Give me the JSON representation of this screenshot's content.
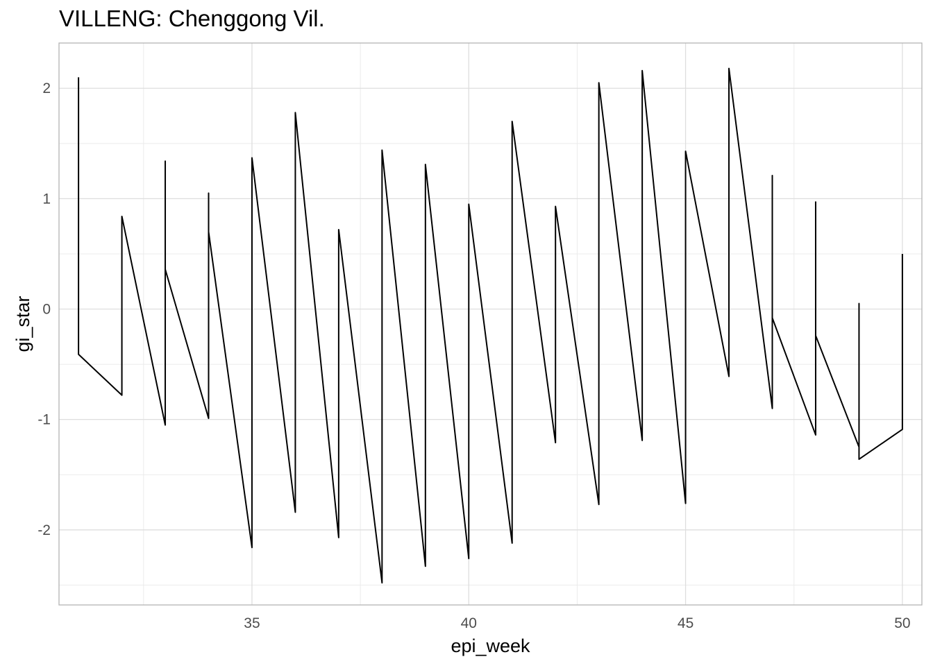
{
  "chart_data": {
    "type": "line",
    "title": "VILLENG: Chenggong Vil.",
    "xlabel": "epi_week",
    "ylabel": "gi_star",
    "xlim": [
      30.55,
      50.45
    ],
    "ylim": [
      -2.68,
      2.41
    ],
    "x_ticks": [
      35,
      40,
      45,
      50
    ],
    "x_tick_labels": [
      "35",
      "40",
      "45",
      "50"
    ],
    "y_ticks": [
      -2,
      -1,
      0,
      1,
      2
    ],
    "y_tick_labels": [
      "-2",
      "-1",
      "0",
      "1",
      "2"
    ],
    "grid": true,
    "line_color": "#000000",
    "series": [
      {
        "points": [
          [
            31,
            2.1
          ],
          [
            31,
            -0.41
          ],
          [
            32,
            -0.78
          ],
          [
            32,
            0.84
          ],
          [
            33,
            -1.05
          ],
          [
            33,
            1.34
          ],
          [
            33,
            0.36
          ],
          [
            34,
            -0.99
          ],
          [
            34,
            1.05
          ],
          [
            34,
            0.7
          ],
          [
            35,
            -2.16
          ],
          [
            35,
            1.37
          ],
          [
            36,
            -1.84
          ],
          [
            36,
            1.78
          ],
          [
            37,
            -2.07
          ],
          [
            37,
            0.72
          ],
          [
            38,
            -2.48
          ],
          [
            38,
            1.44
          ],
          [
            39,
            -2.33
          ],
          [
            39,
            1.31
          ],
          [
            40,
            -2.26
          ],
          [
            40,
            0.95
          ],
          [
            41,
            -2.12
          ],
          [
            41,
            1.7
          ],
          [
            42,
            -1.21
          ],
          [
            42,
            0.93
          ],
          [
            43,
            -1.77
          ],
          [
            43,
            2.05
          ],
          [
            44,
            -1.19
          ],
          [
            44,
            2.16
          ],
          [
            45,
            -1.76
          ],
          [
            45,
            1.43
          ],
          [
            46,
            -0.61
          ],
          [
            46,
            2.18
          ],
          [
            47,
            -0.9
          ],
          [
            47,
            1.21
          ],
          [
            47,
            -0.08
          ],
          [
            48,
            -1.14
          ],
          [
            48,
            0.97
          ],
          [
            48,
            -0.24
          ],
          [
            49,
            -1.25
          ],
          [
            49,
            0.05
          ],
          [
            49,
            -1.36
          ],
          [
            50,
            -1.09
          ],
          [
            50,
            0.5
          ]
        ]
      }
    ]
  }
}
